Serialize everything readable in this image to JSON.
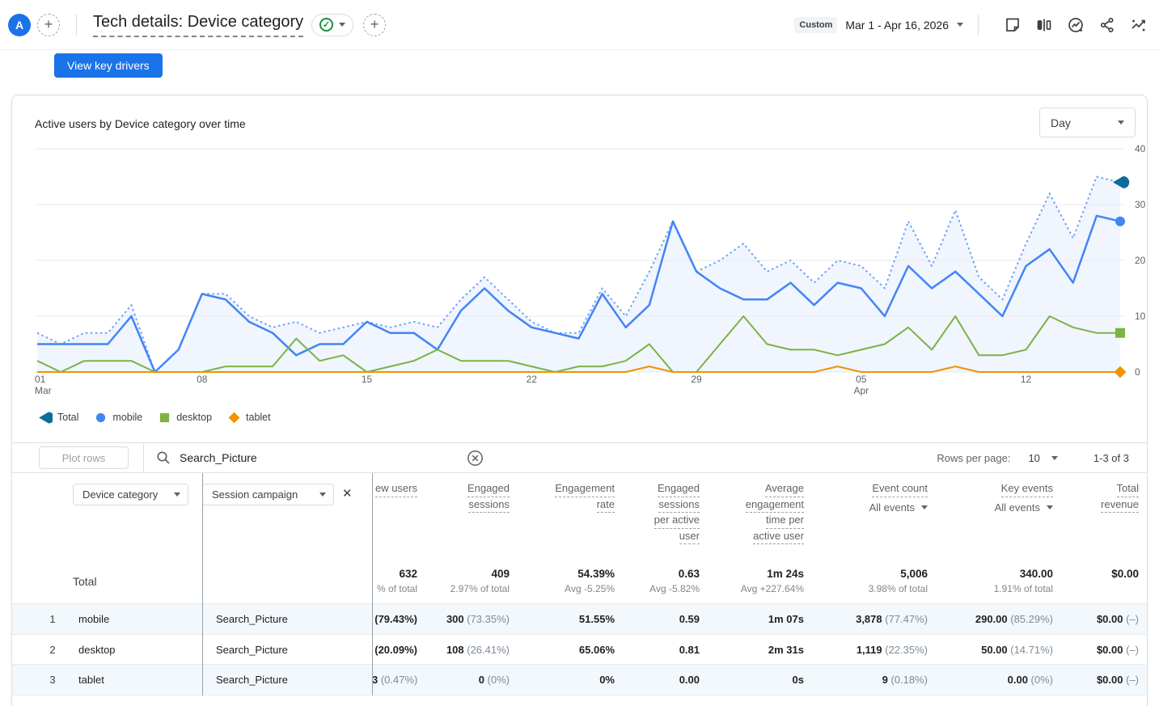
{
  "header": {
    "avatar": "A",
    "title": "Tech details: Device category",
    "date_label": "Custom",
    "date_range": "Mar 1 - Apr 16, 2026",
    "icons": [
      "note-icon",
      "compare-icon",
      "insights-icon",
      "share-icon",
      "trending-icon"
    ]
  },
  "toolbar": {
    "view_key_drivers": "View key drivers"
  },
  "chart": {
    "title": "Active users by Device category over time",
    "granularity": "Day"
  },
  "chart_data": {
    "type": "line",
    "title": "Active users by Device category over time",
    "xlabel": "Date",
    "ylabel": "Active users",
    "ylim": [
      0,
      40
    ],
    "yticks": [
      0,
      10,
      20,
      30,
      40
    ],
    "grid": true,
    "legend_position": "bottom",
    "x": [
      "Mar 1",
      "Mar 2",
      "Mar 3",
      "Mar 4",
      "Mar 5",
      "Mar 6",
      "Mar 7",
      "Mar 8",
      "Mar 9",
      "Mar 10",
      "Mar 11",
      "Mar 12",
      "Mar 13",
      "Mar 14",
      "Mar 15",
      "Mar 16",
      "Mar 17",
      "Mar 18",
      "Mar 19",
      "Mar 20",
      "Mar 21",
      "Mar 22",
      "Mar 23",
      "Mar 24",
      "Mar 25",
      "Mar 26",
      "Mar 27",
      "Mar 28",
      "Mar 29",
      "Mar 30",
      "Mar 31",
      "Apr 1",
      "Apr 2",
      "Apr 3",
      "Apr 4",
      "Apr 5",
      "Apr 6",
      "Apr 7",
      "Apr 8",
      "Apr 9",
      "Apr 10",
      "Apr 11",
      "Apr 12",
      "Apr 13",
      "Apr 14",
      "Apr 15",
      "Apr 16"
    ],
    "xticks": [
      {
        "i": 0,
        "label": "01",
        "sub": "Mar"
      },
      {
        "i": 7,
        "label": "08"
      },
      {
        "i": 14,
        "label": "15"
      },
      {
        "i": 21,
        "label": "22"
      },
      {
        "i": 28,
        "label": "29"
      },
      {
        "i": 35,
        "label": "05",
        "sub": "Apr"
      },
      {
        "i": 42,
        "label": "12"
      }
    ],
    "series": [
      {
        "name": "Total",
        "marker": "fan",
        "line_style": "dotted",
        "color": "#6ea2f8",
        "marker_color": "#0d6d9a",
        "values": [
          7,
          5,
          7,
          7,
          12,
          0,
          4,
          14,
          14,
          10,
          8,
          9,
          7,
          8,
          9,
          8,
          9,
          8,
          13,
          17,
          13,
          9,
          7,
          7,
          15,
          10,
          18,
          27,
          18,
          20,
          23,
          18,
          20,
          16,
          20,
          19,
          15,
          27,
          19,
          29,
          17,
          13,
          23,
          32,
          24,
          35,
          34
        ]
      },
      {
        "name": "mobile",
        "marker": "circle",
        "line_style": "solid",
        "color": "#4285f4",
        "marker_color": "#4285f4",
        "values": [
          5,
          5,
          5,
          5,
          10,
          0,
          4,
          14,
          13,
          9,
          7,
          3,
          5,
          5,
          9,
          7,
          7,
          4,
          11,
          15,
          11,
          8,
          7,
          6,
          14,
          8,
          12,
          27,
          18,
          15,
          13,
          13,
          16,
          12,
          16,
          15,
          10,
          19,
          15,
          18,
          14,
          10,
          19,
          22,
          16,
          28,
          27
        ]
      },
      {
        "name": "desktop",
        "marker": "square",
        "line_style": "solid",
        "color": "#7cb342",
        "marker_color": "#7cb342",
        "values": [
          2,
          0,
          2,
          2,
          2,
          0,
          0,
          0,
          1,
          1,
          1,
          6,
          2,
          3,
          0,
          1,
          2,
          4,
          2,
          2,
          2,
          1,
          0,
          1,
          1,
          2,
          5,
          0,
          0,
          5,
          10,
          5,
          4,
          4,
          3,
          4,
          5,
          8,
          4,
          10,
          3,
          3,
          4,
          10,
          8,
          7,
          7
        ]
      },
      {
        "name": "tablet",
        "marker": "diamond",
        "line_style": "solid",
        "color": "#f09300",
        "marker_color": "#f09300",
        "values": [
          0,
          0,
          0,
          0,
          0,
          0,
          0,
          0,
          0,
          0,
          0,
          0,
          0,
          0,
          0,
          0,
          0,
          0,
          0,
          0,
          0,
          0,
          0,
          0,
          0,
          0,
          1,
          0,
          0,
          0,
          0,
          0,
          0,
          0,
          1,
          0,
          0,
          0,
          0,
          1,
          0,
          0,
          0,
          0,
          0,
          0,
          0
        ]
      }
    ],
    "area_fill_under": "Total",
    "area_fill_color": "rgba(66,133,244,0.08)"
  },
  "table": {
    "plot_rows": "Plot rows",
    "search_value": "Search_Picture",
    "rows_per_page_label": "Rows per page:",
    "rows_per_page_value": "10",
    "pagination": "1-3 of 3",
    "dim1_label": "Device category",
    "dim2_label": "Session campaign",
    "columns": [
      {
        "slug": "new-users",
        "lines": [
          "ew users"
        ]
      },
      {
        "slug": "engaged-sessions",
        "lines": [
          "Engaged",
          "sessions"
        ]
      },
      {
        "slug": "engagement-rate",
        "lines": [
          "Engagement",
          "rate"
        ]
      },
      {
        "slug": "engaged-sessions-per-active-user",
        "lines": [
          "Engaged",
          "sessions",
          "per active",
          "user"
        ]
      },
      {
        "slug": "average-engagement-time-per-active-user",
        "lines": [
          "Average",
          "engagement",
          "time per",
          "active user"
        ]
      },
      {
        "slug": "event-count",
        "lines": [
          "Event count"
        ],
        "filter": "All events"
      },
      {
        "slug": "key-events",
        "lines": [
          "Key events"
        ],
        "filter": "All events"
      },
      {
        "slug": "total-revenue",
        "lines": [
          "Total",
          "revenue"
        ]
      }
    ],
    "totals": {
      "label": "Total",
      "values": [
        {
          "main": "632",
          "sub": "% of total"
        },
        {
          "main": "409",
          "sub": "2.97% of total"
        },
        {
          "main": "54.39%",
          "sub": "Avg -5.25%"
        },
        {
          "main": "0.63",
          "sub": "Avg -5.82%"
        },
        {
          "main": "1m 24s",
          "sub": "Avg +227.64%"
        },
        {
          "main": "5,006",
          "sub": "3.98% of total"
        },
        {
          "main": "340.00",
          "sub": "1.91% of total"
        },
        {
          "main": "$0.00",
          "sub": ""
        }
      ]
    },
    "rows": [
      {
        "rank": "1",
        "device": "mobile",
        "campaign": "Search_Picture",
        "values": [
          "(79.43%)",
          "300 (73.35%)",
          "51.55%",
          "0.59",
          "1m 07s",
          "3,878 (77.47%)",
          "290.00 (85.29%)",
          "$0.00 (–)"
        ]
      },
      {
        "rank": "2",
        "device": "desktop",
        "campaign": "Search_Picture",
        "values": [
          "(20.09%)",
          "108 (26.41%)",
          "65.06%",
          "0.81",
          "2m 31s",
          "1,119 (22.35%)",
          "50.00 (14.71%)",
          "$0.00 (–)"
        ]
      },
      {
        "rank": "3",
        "device": "tablet",
        "campaign": "Search_Picture",
        "values": [
          "3 (0.47%)",
          "0 (0%)",
          "0%",
          "0.00",
          "0s",
          "9 (0.18%)",
          "0.00 (0%)",
          "$0.00 (–)"
        ]
      }
    ]
  }
}
